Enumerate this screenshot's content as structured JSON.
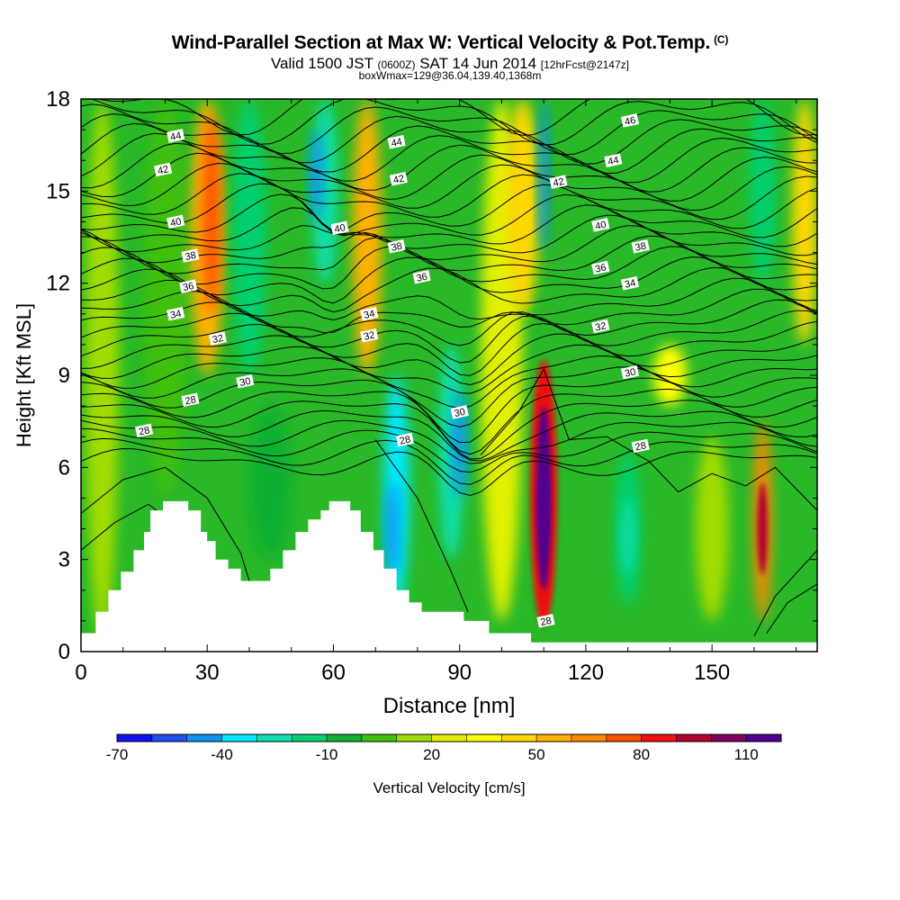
{
  "header": {
    "title_main": "Wind-Parallel Section at Max W: Vertical Velocity & Pot.Temp.",
    "title_mark": "(C)",
    "valid_prefix": "Valid 1500 JST",
    "valid_utc": "(0600Z)",
    "valid_date": "SAT 14 Jun 2014",
    "forecast": "[12hrFcst@2147z]",
    "box_info": "boxWmax=129@36.04,139.40,1368m"
  },
  "chart_data": {
    "type": "heatmap",
    "xlabel": "Distance [nm]",
    "ylabel": "Height [Kft MSL]",
    "xlim": [
      0,
      175
    ],
    "ylim": [
      0,
      18
    ],
    "x_ticks": [
      0,
      30,
      60,
      90,
      120,
      150
    ],
    "y_ticks": [
      0,
      3,
      6,
      9,
      12,
      15,
      18
    ],
    "colorbar": {
      "label": "Vertical Velocity [cm/s]",
      "tick_labels": [
        "-70",
        "-40",
        "-10",
        "20",
        "50",
        "80",
        "110"
      ],
      "colors": [
        "#1010f0",
        "#2050f0",
        "#1090f0",
        "#00e8ff",
        "#10e0b0",
        "#00d070",
        "#10b030",
        "#40c010",
        "#a0dc00",
        "#e0f000",
        "#ffff00",
        "#ffd800",
        "#ffb000",
        "#ff8800",
        "#ff5000",
        "#f01010",
        "#b00030",
        "#800060",
        "#500090"
      ]
    },
    "velocity_cells": [
      {
        "x": 5,
        "y0": 0.5,
        "y1": 18,
        "w": 4,
        "value": 5
      },
      {
        "x": 20,
        "y0": 5,
        "y1": 18,
        "w": 5,
        "value": -5
      },
      {
        "x": 30,
        "y0": 9,
        "y1": 18,
        "w": 4,
        "value": 45
      },
      {
        "x": 31,
        "y0": 11,
        "y1": 17.5,
        "w": 2,
        "value": 60
      },
      {
        "x": 40,
        "y0": 9,
        "y1": 18,
        "w": 4,
        "value": -25
      },
      {
        "x": 45,
        "y0": 3,
        "y1": 8,
        "w": 5,
        "value": -18
      },
      {
        "x": 58,
        "y0": 12,
        "y1": 18,
        "w": 3,
        "value": -40
      },
      {
        "x": 56,
        "y0": 14,
        "y1": 17,
        "w": 1.5,
        "value": -55
      },
      {
        "x": 68,
        "y0": 9,
        "y1": 18,
        "w": 3.5,
        "value": 40
      },
      {
        "x": 75,
        "y0": 1.5,
        "y1": 9,
        "w": 3,
        "value": -45
      },
      {
        "x": 74,
        "y0": 2.5,
        "y1": 5.5,
        "w": 1.5,
        "value": -60
      },
      {
        "x": 88,
        "y0": 3,
        "y1": 10,
        "w": 3,
        "value": -35
      },
      {
        "x": 90,
        "y0": 5,
        "y1": 8.5,
        "w": 1.6,
        "value": -60
      },
      {
        "x": 100,
        "y0": 1,
        "y1": 18,
        "w": 5,
        "value": 10
      },
      {
        "x": 105,
        "y0": 11,
        "y1": 18,
        "w": 4,
        "value": 35
      },
      {
        "x": 110,
        "y0": 0.8,
        "y1": 9.5,
        "w": 3.2,
        "value": 70
      },
      {
        "x": 110,
        "y0": 2,
        "y1": 8,
        "w": 1.8,
        "value": 105
      },
      {
        "x": 110,
        "y0": 3.5,
        "y1": 6,
        "w": 1,
        "value": 125
      },
      {
        "x": 110,
        "y0": 13,
        "y1": 18,
        "w": 1.2,
        "value": -55
      },
      {
        "x": 130,
        "y0": 1.5,
        "y1": 6.5,
        "w": 3,
        "value": -25
      },
      {
        "x": 130,
        "y0": 2.5,
        "y1": 5,
        "w": 1.5,
        "value": -40
      },
      {
        "x": 140,
        "y0": 8,
        "y1": 10,
        "w": 4,
        "value": 25
      },
      {
        "x": 150,
        "y0": 1,
        "y1": 7,
        "w": 4,
        "value": 5
      },
      {
        "x": 162,
        "y0": 1,
        "y1": 7.5,
        "w": 2.2,
        "value": 55
      },
      {
        "x": 162,
        "y0": 2.5,
        "y1": 5.5,
        "w": 1.2,
        "value": 85
      },
      {
        "x": 162,
        "y0": 12,
        "y1": 18,
        "w": 3,
        "value": -30
      },
      {
        "x": 172,
        "y0": 10,
        "y1": 18,
        "w": 3,
        "value": 30
      }
    ],
    "contour_labels": [
      {
        "text": "44",
        "x": 22.5,
        "y": 16.8
      },
      {
        "text": "42",
        "x": 19.5,
        "y": 15.7
      },
      {
        "text": "40",
        "x": 22.5,
        "y": 14.0
      },
      {
        "text": "38",
        "x": 26.0,
        "y": 12.9
      },
      {
        "text": "36",
        "x": 25.5,
        "y": 11.9
      },
      {
        "text": "34",
        "x": 22.5,
        "y": 11.0
      },
      {
        "text": "32",
        "x": 32.5,
        "y": 10.2
      },
      {
        "text": "30",
        "x": 39.0,
        "y": 8.8
      },
      {
        "text": "28",
        "x": 26.0,
        "y": 8.2
      },
      {
        "text": "28",
        "x": 15.0,
        "y": 7.2
      },
      {
        "text": "44",
        "x": 75.0,
        "y": 16.6
      },
      {
        "text": "42",
        "x": 75.5,
        "y": 15.4
      },
      {
        "text": "40",
        "x": 61.5,
        "y": 13.8
      },
      {
        "text": "38",
        "x": 75.0,
        "y": 13.2
      },
      {
        "text": "36",
        "x": 81.0,
        "y": 12.2
      },
      {
        "text": "34",
        "x": 68.5,
        "y": 11.0
      },
      {
        "text": "32",
        "x": 68.5,
        "y": 10.3
      },
      {
        "text": "30",
        "x": 90.0,
        "y": 7.8
      },
      {
        "text": "28",
        "x": 77.0,
        "y": 6.9
      },
      {
        "text": "46",
        "x": 130.5,
        "y": 17.3
      },
      {
        "text": "44",
        "x": 126.5,
        "y": 16.0
      },
      {
        "text": "42",
        "x": 113.5,
        "y": 15.3
      },
      {
        "text": "40",
        "x": 123.5,
        "y": 13.9
      },
      {
        "text": "38",
        "x": 133.0,
        "y": 13.2
      },
      {
        "text": "36",
        "x": 123.5,
        "y": 12.5
      },
      {
        "text": "34",
        "x": 130.5,
        "y": 12.0
      },
      {
        "text": "32",
        "x": 123.5,
        "y": 10.6
      },
      {
        "text": "30",
        "x": 130.5,
        "y": 9.1
      },
      {
        "text": "28",
        "x": 133.0,
        "y": 6.7
      },
      {
        "text": "28",
        "x": 110.5,
        "y": 1.0
      }
    ]
  }
}
